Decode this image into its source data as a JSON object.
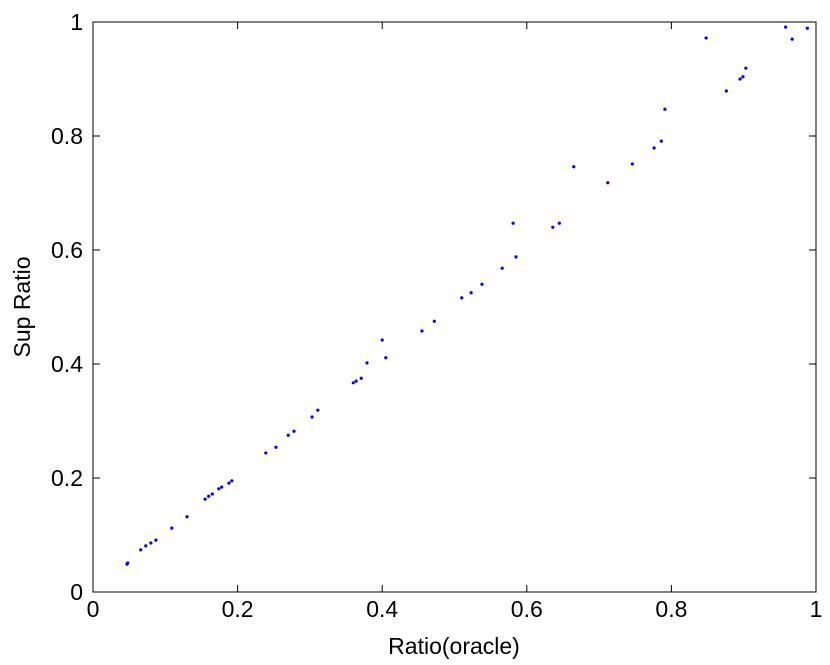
{
  "chart_data": {
    "type": "scatter",
    "x_label": "Ratio(oracle)",
    "y_label": "Sup Ratio",
    "xlim": [
      0,
      1
    ],
    "ylim": [
      0,
      1
    ],
    "xticks": [
      0,
      0.2,
      0.4,
      0.6,
      0.8,
      1
    ],
    "yticks": [
      0,
      0.2,
      0.4,
      0.6,
      0.8,
      1
    ],
    "color": "#0000ff",
    "x": [
      0.047,
      0.048,
      0.066,
      0.073,
      0.08,
      0.087,
      0.109,
      0.13,
      0.155,
      0.16,
      0.165,
      0.174,
      0.178,
      0.188,
      0.192,
      0.239,
      0.253,
      0.27,
      0.278,
      0.303,
      0.311,
      0.36,
      0.364,
      0.371,
      0.379,
      0.4,
      0.405,
      0.455,
      0.472,
      0.51,
      0.523,
      0.538,
      0.566,
      0.581,
      0.585,
      0.636,
      0.645,
      0.665,
      0.712,
      0.746,
      0.776,
      0.786,
      0.791,
      0.876,
      0.848,
      0.895,
      0.899,
      0.903,
      0.958,
      0.967,
      0.988
    ],
    "y": [
      0.049,
      0.051,
      0.074,
      0.081,
      0.086,
      0.091,
      0.112,
      0.132,
      0.163,
      0.168,
      0.172,
      0.181,
      0.184,
      0.191,
      0.195,
      0.244,
      0.254,
      0.275,
      0.282,
      0.307,
      0.319,
      0.367,
      0.37,
      0.375,
      0.402,
      0.442,
      0.411,
      0.458,
      0.475,
      0.516,
      0.525,
      0.54,
      0.568,
      0.647,
      0.588,
      0.64,
      0.647,
      0.746,
      0.718,
      0.751,
      0.779,
      0.791,
      0.847,
      0.879,
      0.972,
      0.9,
      0.904,
      0.919,
      0.991,
      0.97,
      0.989
    ]
  }
}
